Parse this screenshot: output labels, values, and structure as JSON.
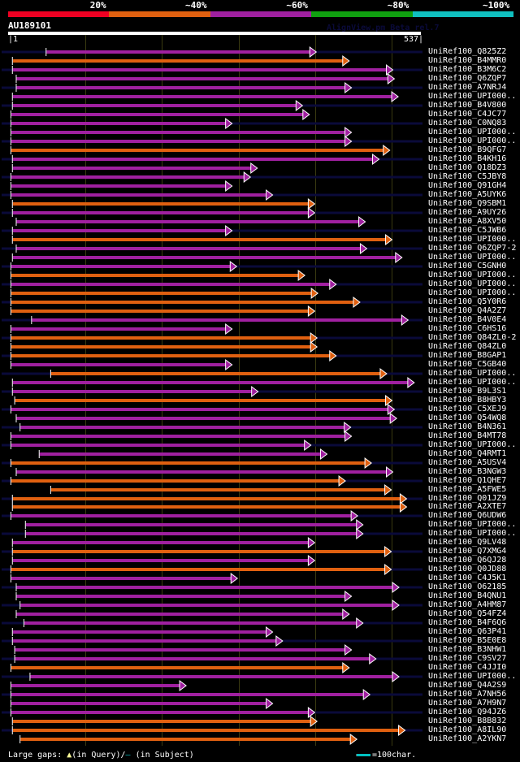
{
  "legend": {
    "segments": [
      {
        "label": "20%",
        "color": "#ee0022"
      },
      {
        "label": "~40%",
        "color": "#e06010"
      },
      {
        "label": "~60%",
        "color": "#a020a0"
      },
      {
        "label": "~80%",
        "color": "#10a010"
      },
      {
        "label": "~100%",
        "color": "#10c0c0"
      }
    ]
  },
  "query": {
    "id": "AU189101",
    "start_label": "|1",
    "end_label": "537|",
    "length": 537
  },
  "watermark": "AlignView.pm Beta rel.7",
  "footer": {
    "gaps_label": "Large gaps:",
    "query_gap_symbol": "▲",
    "query_gap_text": "(in Query)/",
    "subject_gap_symbol": "—",
    "subject_gap_text": " (in Subject)",
    "scale_text": "=100char."
  },
  "colors": {
    "orange": "#e06010",
    "purple": "#a020a0",
    "tail": "#0a0a3a",
    "gap_marker": "#ffff99",
    "grid": "#3a3a10"
  },
  "hits": [
    {
      "label": "UniRef100_Q825Z2",
      "start": 49,
      "end": 394,
      "color": "purple",
      "tail": true
    },
    {
      "label": "UniRef100_B4MMR0",
      "start": 5,
      "end": 437,
      "color": "orange"
    },
    {
      "label": "UniRef100_B3M6C2",
      "start": 5,
      "end": 494,
      "color": "purple",
      "tail": true
    },
    {
      "label": "UniRef100_Q6ZQP7",
      "start": 10,
      "end": 496,
      "color": "purple"
    },
    {
      "label": "UniRef100_A7NRJ4",
      "start": 10,
      "end": 440,
      "color": "purple",
      "tail": true
    },
    {
      "label": "UniRef100_UPI000..",
      "start": 5,
      "end": 501,
      "color": "purple"
    },
    {
      "label": "UniRef100_B4V800",
      "start": 5,
      "end": 376,
      "color": "purple",
      "tail": true
    },
    {
      "label": "UniRef100_C4JC77",
      "start": 3,
      "end": 385,
      "color": "purple"
    },
    {
      "label": "UniRef100_C0NQ83",
      "start": 3,
      "end": 284,
      "color": "purple",
      "tail": true
    },
    {
      "label": "UniRef100_UPI000..",
      "start": 3,
      "end": 440,
      "color": "purple"
    },
    {
      "label": "UniRef100_UPI000..",
      "start": 3,
      "end": 440,
      "color": "purple",
      "tail": true
    },
    {
      "label": "UniRef100_B9QFG7",
      "start": 3,
      "end": 490,
      "color": "orange"
    },
    {
      "label": "UniRef100_B4KH16",
      "start": 5,
      "end": 476,
      "color": "purple",
      "tail": true
    },
    {
      "label": "UniRef100_Q18DZ3",
      "start": 5,
      "end": 317,
      "color": "purple"
    },
    {
      "label": "UniRef100_C5JBY8",
      "start": 3,
      "end": 308,
      "color": "purple",
      "tail": true
    },
    {
      "label": "UniRef100_Q91GH4",
      "start": 3,
      "end": 284,
      "color": "purple"
    },
    {
      "label": "UniRef100_A5UYK6",
      "start": 3,
      "end": 337,
      "color": "purple",
      "tail": true
    },
    {
      "label": "UniRef100_Q9SBM1",
      "start": 5,
      "end": 392,
      "color": "orange"
    },
    {
      "label": "UniRef100_A9UY26",
      "start": 5,
      "end": 392,
      "color": "purple",
      "tail": true
    },
    {
      "label": "UniRef100_A8XV50",
      "start": 10,
      "end": 458,
      "color": "purple"
    },
    {
      "label": "UniRef100_C5JWB6",
      "start": 5,
      "end": 284,
      "color": "purple",
      "tail": true
    },
    {
      "label": "UniRef100_UPI000..",
      "start": 5,
      "end": 493,
      "color": "orange"
    },
    {
      "label": "UniRef100_Q6ZQP7-2",
      "start": 10,
      "end": 460,
      "color": "purple",
      "tail": true
    },
    {
      "label": "UniRef100_UPI000..",
      "start": 5,
      "end": 506,
      "color": "purple"
    },
    {
      "label": "UniRef100_C5GNH0",
      "start": 3,
      "end": 290,
      "color": "purple",
      "tail": true
    },
    {
      "label": "UniRef100_UPI000..",
      "start": 3,
      "end": 379,
      "color": "orange"
    },
    {
      "label": "UniRef100_UPI000..",
      "start": 3,
      "end": 420,
      "color": "purple",
      "tail": true
    },
    {
      "label": "UniRef100_UPI000..",
      "start": 3,
      "end": 396,
      "color": "orange"
    },
    {
      "label": "UniRef100_Q5Y0R6",
      "start": 3,
      "end": 451,
      "color": "orange",
      "tail": true
    },
    {
      "label": "UniRef100_Q4A2Z7",
      "start": 3,
      "end": 392,
      "color": "orange"
    },
    {
      "label": "UniRef100_B4V0E4",
      "start": 30,
      "end": 514,
      "color": "purple",
      "tail": true
    },
    {
      "label": "UniRef100_C6HS16",
      "start": 3,
      "end": 284,
      "color": "purple"
    },
    {
      "label": "UniRef100_Q84ZL0-2",
      "start": 3,
      "end": 395,
      "color": "orange",
      "tail": true
    },
    {
      "label": "UniRef100_Q84ZL0",
      "start": 3,
      "end": 395,
      "color": "orange"
    },
    {
      "label": "UniRef100_B8GAP1",
      "start": 3,
      "end": 420,
      "color": "orange",
      "tail": true
    },
    {
      "label": "UniRef100_C5GB40",
      "start": 3,
      "end": 284,
      "color": "purple"
    },
    {
      "label": "UniRef100_UPI000..",
      "start": 55,
      "end": 486,
      "color": "orange",
      "tail": true
    },
    {
      "label": "UniRef100_UPI000..",
      "start": 5,
      "end": 522,
      "color": "purple"
    },
    {
      "label": "UniRef100_B9L3S1",
      "start": 5,
      "end": 318,
      "color": "purple",
      "tail": true
    },
    {
      "label": "UniRef100_B8HBY3",
      "start": 8,
      "end": 493,
      "color": "orange"
    },
    {
      "label": "UniRef100_C5XEJ9",
      "start": 3,
      "end": 496,
      "color": "purple",
      "tail": true
    },
    {
      "label": "UniRef100_Q54WQ8",
      "start": 10,
      "end": 499,
      "color": "purple"
    },
    {
      "label": "UniRef100_B4N361",
      "start": 15,
      "end": 439,
      "color": "purple",
      "tail": true
    },
    {
      "label": "UniRef100_B4MT78",
      "start": 3,
      "end": 440,
      "color": "purple"
    },
    {
      "label": "UniRef100_UPI000..",
      "start": 3,
      "end": 387,
      "color": "purple",
      "tail": true
    },
    {
      "label": "UniRef100_Q4RMT1",
      "start": 40,
      "end": 408,
      "color": "purple"
    },
    {
      "label": "UniRef100_A5USV4",
      "start": 3,
      "end": 466,
      "color": "orange",
      "tail": true
    },
    {
      "label": "UniRef100_B3NGW3",
      "start": 10,
      "end": 494,
      "color": "purple"
    },
    {
      "label": "UniRef100_Q1QHE7",
      "start": 3,
      "end": 432,
      "color": "orange",
      "tail": true
    },
    {
      "label": "UniRef100_A5FWE5",
      "start": 55,
      "end": 492,
      "color": "orange"
    },
    {
      "label": "UniRef100_Q01JZ9",
      "start": 5,
      "end": 512,
      "color": "orange",
      "tail": true
    },
    {
      "label": "UniRef100_A2XTE7",
      "start": 5,
      "end": 512,
      "color": "orange"
    },
    {
      "label": "UniRef100_Q6UDW6",
      "start": 3,
      "end": 448,
      "color": "purple",
      "tail": true
    },
    {
      "label": "UniRef100_UPI000..",
      "start": 22,
      "end": 455,
      "color": "purple"
    },
    {
      "label": "UniRef100_UPI000..",
      "start": 22,
      "end": 455,
      "color": "purple",
      "tail": true
    },
    {
      "label": "UniRef100_Q9LV48",
      "start": 5,
      "end": 392,
      "color": "purple"
    },
    {
      "label": "UniRef100_Q7XMG4",
      "start": 5,
      "end": 492,
      "color": "orange",
      "tail": true
    },
    {
      "label": "UniRef100_Q6QJ28",
      "start": 5,
      "end": 392,
      "color": "purple"
    },
    {
      "label": "UniRef100_Q0JD88",
      "start": 3,
      "end": 492,
      "color": "orange",
      "tail": true
    },
    {
      "label": "UniRef100_C4J5K1",
      "start": 3,
      "end": 291,
      "color": "purple"
    },
    {
      "label": "UniRef100_O62185",
      "start": 10,
      "end": 502,
      "color": "purple",
      "tail": true
    },
    {
      "label": "UniRef100_B4QNU1",
      "start": 10,
      "end": 440,
      "color": "purple"
    },
    {
      "label": "UniRef100_A4HM87",
      "start": 15,
      "end": 502,
      "color": "purple",
      "tail": true
    },
    {
      "label": "UniRef100_Q54FZ4",
      "start": 10,
      "end": 437,
      "color": "purple"
    },
    {
      "label": "UniRef100_B4F6Q6",
      "start": 20,
      "end": 455,
      "color": "purple",
      "tail": true
    },
    {
      "label": "UniRef100_Q63P41",
      "start": 5,
      "end": 337,
      "color": "purple"
    },
    {
      "label": "UniRef100_B5E0E8",
      "start": 5,
      "end": 350,
      "color": "purple",
      "tail": true
    },
    {
      "label": "UniRef100_B3NHW1",
      "start": 8,
      "end": 440,
      "color": "purple"
    },
    {
      "label": "UniRef100_C9SV27",
      "start": 8,
      "end": 472,
      "color": "purple",
      "tail": true
    },
    {
      "label": "UniRef100_C4JJI0",
      "start": 3,
      "end": 437,
      "color": "orange"
    },
    {
      "label": "UniRef100_UPI000..",
      "start": 28,
      "end": 502,
      "color": "purple",
      "tail": true
    },
    {
      "label": "UniRef100_Q4A2S9",
      "start": 3,
      "end": 224,
      "color": "purple"
    },
    {
      "label": "UniRef100_A7NH56",
      "start": 3,
      "end": 464,
      "color": "purple",
      "tail": true
    },
    {
      "label": "UniRef100_A7H9N7",
      "start": 3,
      "end": 337,
      "color": "purple"
    },
    {
      "label": "UniRef100_Q94JZ6",
      "start": 3,
      "end": 392,
      "color": "purple",
      "tail": true
    },
    {
      "label": "UniRef100_B8B832",
      "start": 5,
      "end": 395,
      "color": "orange"
    },
    {
      "label": "UniRef100_A8IL90",
      "start": 5,
      "end": 510,
      "color": "orange",
      "tail": true
    },
    {
      "label": "UniRef100_A2YKN7",
      "start": 15,
      "end": 447,
      "color": "orange"
    }
  ]
}
